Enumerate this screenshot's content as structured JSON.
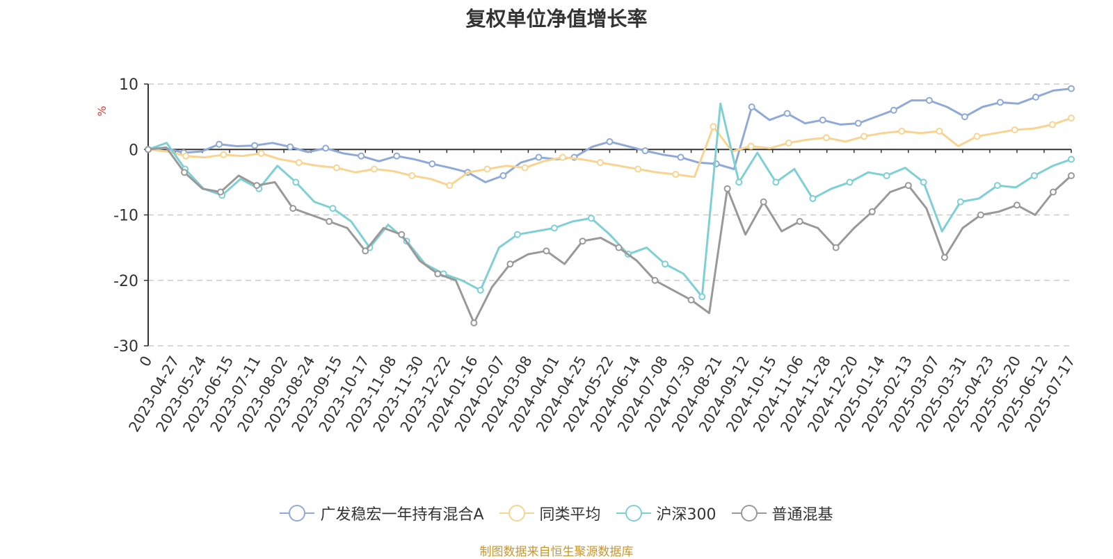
{
  "chart_data": {
    "type": "line",
    "title": "复权单位净值增长率",
    "ylabel": "%",
    "ylim": [
      -30,
      10
    ],
    "yticks": [
      10,
      0,
      -10,
      -20,
      -30
    ],
    "x_start_label": "0",
    "x_tick_labels": [
      "2023-04-27",
      "2023-05-24",
      "2023-06-15",
      "2023-07-11",
      "2023-08-02",
      "2023-08-24",
      "2023-09-15",
      "2023-10-17",
      "2023-11-08",
      "2023-11-30",
      "2023-12-22",
      "2024-01-16",
      "2024-02-07",
      "2024-03-08",
      "2024-04-01",
      "2024-04-25",
      "2024-05-22",
      "2024-06-14",
      "2024-07-08",
      "2024-07-30",
      "2024-08-21",
      "2024-09-12",
      "2024-10-15",
      "2024-11-06",
      "2024-11-28",
      "2024-12-20",
      "2025-01-14",
      "2025-02-13",
      "2025-03-07",
      "2025-03-31",
      "2025-04-23",
      "2025-05-20",
      "2025-06-12",
      "2025-07-17"
    ],
    "grid": true,
    "legend_position": "bottom",
    "series": [
      {
        "name": "广发稳宏一年持有混合A",
        "color": "#8fa9d8",
        "values": [
          0,
          0.2,
          -0.5,
          -0.3,
          0.8,
          0.5,
          0.6,
          1.0,
          0.4,
          -0.4,
          0.2,
          -0.6,
          -1.0,
          -1.8,
          -1.0,
          -1.5,
          -2.2,
          -2.8,
          -3.5,
          -5.0,
          -4.0,
          -2.0,
          -1.2,
          -1.5,
          -1.2,
          0.4,
          1.2,
          0.5,
          -0.2,
          -0.8,
          -1.2,
          -2.0,
          -2.2,
          -3.0,
          6.5,
          4.5,
          5.5,
          4.0,
          4.5,
          3.8,
          4.0,
          5.0,
          6.0,
          7.5,
          7.5,
          6.5,
          5.0,
          6.5,
          7.2,
          7.0,
          8.0,
          9.0,
          9.3
        ]
      },
      {
        "name": "同类平均",
        "color": "#f8d490",
        "values": [
          0,
          -0.3,
          -1.0,
          -1.2,
          -0.8,
          -1.0,
          -0.6,
          -1.5,
          -2.0,
          -2.5,
          -2.8,
          -3.5,
          -3.0,
          -3.3,
          -4.0,
          -4.5,
          -5.5,
          -3.5,
          -3.0,
          -2.5,
          -2.8,
          -1.8,
          -1.2,
          -1.5,
          -2.0,
          -2.5,
          -3.0,
          -3.5,
          -3.8,
          -4.2,
          3.5,
          -0.3,
          0.5,
          0.2,
          1.0,
          1.5,
          1.8,
          1.2,
          2.0,
          2.5,
          2.8,
          2.5,
          2.8,
          0.5,
          2.0,
          2.5,
          3.0,
          3.2,
          3.8,
          4.8
        ]
      },
      {
        "name": "沪深300",
        "color": "#7dd0d4",
        "values": [
          0,
          1.0,
          -3.0,
          -6.0,
          -7.0,
          -4.5,
          -6.0,
          -2.5,
          -5.0,
          -8.0,
          -9.0,
          -11.0,
          -15.0,
          -11.5,
          -14.0,
          -17.5,
          -19.0,
          -20.0,
          -21.5,
          -15.0,
          -13.0,
          -12.5,
          -12.0,
          -11.0,
          -10.5,
          -13.0,
          -16.0,
          -15.0,
          -17.5,
          -19.0,
          -22.5,
          7.0,
          -5.0,
          -0.5,
          -5.0,
          -3.0,
          -7.5,
          -6.0,
          -5.0,
          -3.5,
          -4.0,
          -2.8,
          -5.0,
          -12.5,
          -8.0,
          -7.5,
          -5.5,
          -5.8,
          -4.0,
          -2.5,
          -1.5
        ]
      },
      {
        "name": "普通混基",
        "color": "#999999",
        "values": [
          0,
          0.3,
          -3.5,
          -6.0,
          -6.5,
          -4.0,
          -5.5,
          -5.0,
          -9.0,
          -10.0,
          -11.0,
          -12.0,
          -15.5,
          -12.0,
          -13.0,
          -17.0,
          -19.0,
          -20.0,
          -26.5,
          -21.0,
          -17.5,
          -16.0,
          -15.5,
          -17.5,
          -14.0,
          -13.5,
          -15.0,
          -17.0,
          -20.0,
          -21.5,
          -23.0,
          -25.0,
          -6.0,
          -13.0,
          -8.0,
          -12.5,
          -11.0,
          -12.0,
          -15.0,
          -12.0,
          -9.5,
          -6.5,
          -5.5,
          -9.0,
          -16.5,
          -12.0,
          -10.0,
          -9.5,
          -8.5,
          -10.0,
          -6.5,
          -4.0
        ]
      }
    ]
  },
  "source_note": "制图数据来自恒生聚源数据库"
}
